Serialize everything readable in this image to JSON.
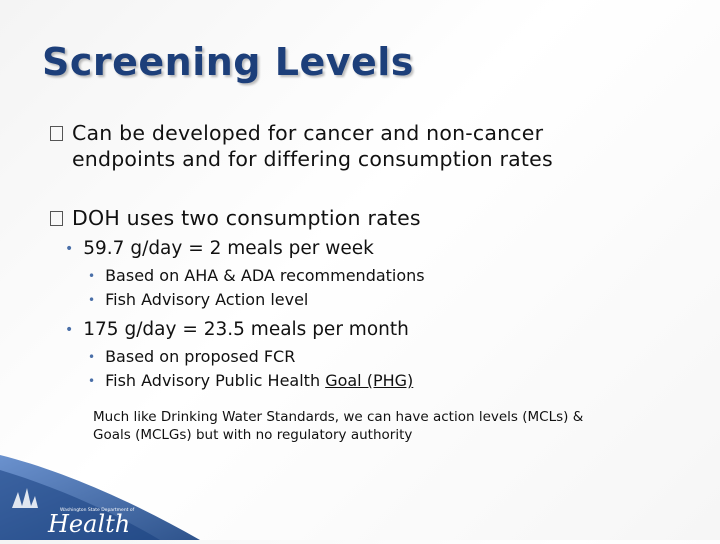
{
  "slide": {
    "title": "Screening Levels",
    "bullets": [
      {
        "text_line1": "Can be developed for cancer and non-cancer",
        "text_line2": "endpoints and for differing consumption rates"
      },
      {
        "text": "DOH uses two consumption rates",
        "sub": [
          {
            "text": "59.7 g/day = 2 meals per week",
            "sub": [
              "Based on AHA & ADA recommendations",
              "Fish Advisory Action level"
            ]
          },
          {
            "text": "175 g/day = 23.5 meals per month",
            "sub": [
              "Based on proposed FCR",
              "Fish Advisory Public Health ",
              "Goal (PHG)"
            ]
          }
        ]
      }
    ],
    "note_line1": "Much like Drinking Water Standards, we can have action levels (MCLs) &",
    "note_line2": "Goals (MCLGs) but with no regulatory authority"
  },
  "logo": {
    "org_line": "Washington State Department of",
    "word": "Health"
  },
  "colors": {
    "title": "#1d3f7a",
    "accent": "#1e4f9c",
    "bullet": "#4a6fa8"
  }
}
